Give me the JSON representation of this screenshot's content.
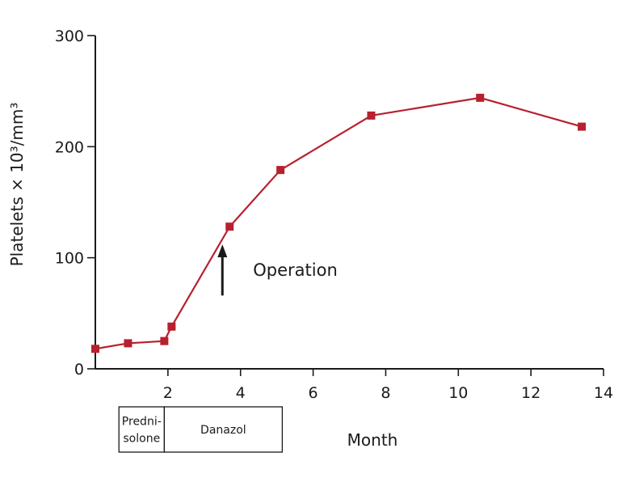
{
  "chart_data": {
    "type": "line",
    "xlabel": "Month",
    "ylabel": "Platelets × 10³/mm³",
    "xlim": [
      0,
      14
    ],
    "ylim": [
      0,
      300
    ],
    "x_ticks": [
      2,
      4,
      6,
      8,
      10,
      12,
      14
    ],
    "y_ticks": [
      0,
      100,
      200,
      300
    ],
    "grid": false,
    "color": "#b8202e",
    "series": [
      {
        "x": [
          0,
          0.9,
          1.9,
          2.1,
          3.7,
          5.1,
          7.6,
          10.6,
          13.4
        ],
        "y": [
          18,
          23,
          25,
          38,
          128,
          179,
          228,
          244,
          218
        ]
      }
    ],
    "annotations": [
      {
        "text": "Operation",
        "arrow_x": 3.5,
        "arrow_y_from": 66,
        "arrow_y_to": 112
      }
    ],
    "treatments": [
      {
        "label_lines": [
          "Predni-",
          "solone"
        ],
        "x_start": 0.65,
        "x_end": 1.9
      },
      {
        "label_lines": [
          "Danazol"
        ],
        "x_start": 1.9,
        "x_end": 5.15
      }
    ]
  }
}
